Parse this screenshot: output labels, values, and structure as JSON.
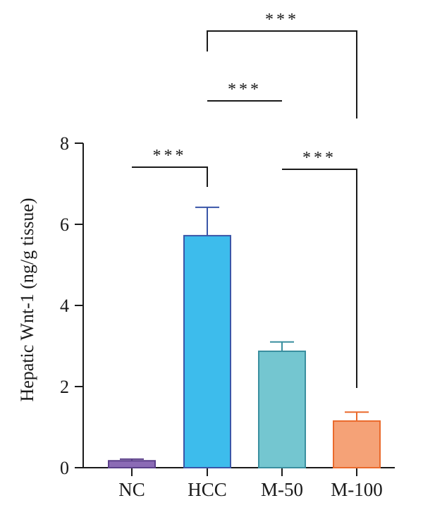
{
  "chart_data": {
    "type": "bar",
    "categories": [
      "NC",
      "HCC",
      "M-50",
      "M-100"
    ],
    "values": [
      0.17,
      5.72,
      2.87,
      1.15
    ],
    "errors": [
      0.04,
      0.7,
      0.23,
      0.22
    ],
    "colors": {
      "fill": [
        "#8b6bb5",
        "#3dbcec",
        "#74c6d0",
        "#f5a277"
      ],
      "stroke": [
        "#5b3f8a",
        "#3a56a8",
        "#3a8f9f",
        "#ea6a2c"
      ]
    },
    "ylabel": "Hepatic Wnt-1 (ng/g tissue)",
    "xlabel": "",
    "ylim": [
      0,
      8
    ],
    "yticks": [
      0,
      2,
      4,
      6,
      8
    ],
    "grid": false,
    "significance": [
      {
        "from": 0,
        "to": 1,
        "label": "***"
      },
      {
        "from": 1,
        "to": 2,
        "label": "***"
      },
      {
        "from": 2,
        "to": 3,
        "label": "***"
      },
      {
        "from": 1,
        "to": 3,
        "label": "***"
      }
    ]
  }
}
